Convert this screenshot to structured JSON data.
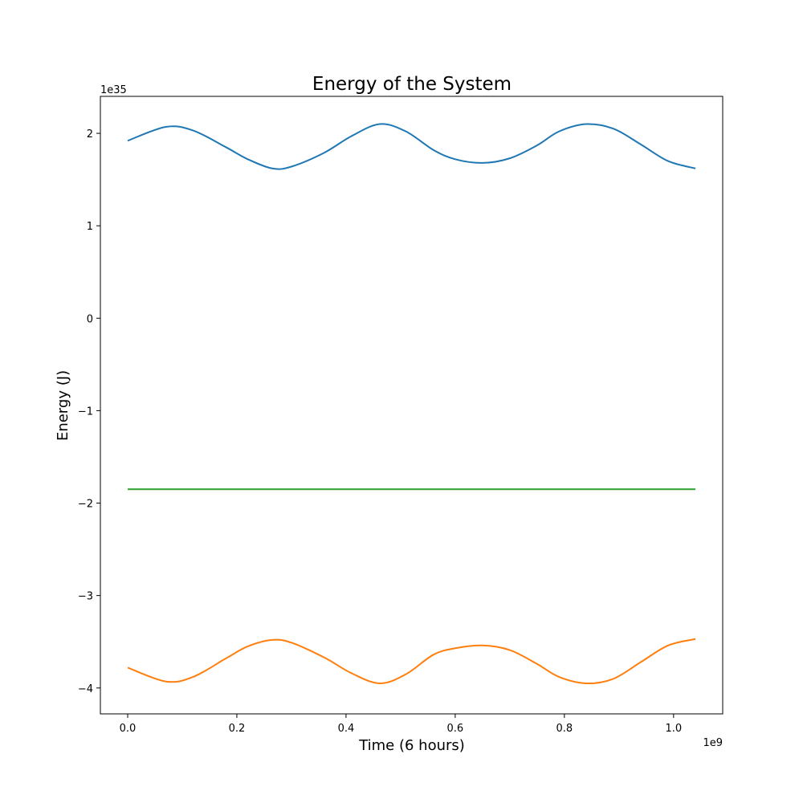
{
  "chart_data": {
    "type": "line",
    "title": "Energy of the System",
    "xlabel": "Time (6 hours)",
    "ylabel": "Energy (J)",
    "x_offset_label": "1e9",
    "y_offset_label": "1e35",
    "x_scale": 1000000000.0,
    "y_scale": 1e+35,
    "xlim": [
      -0.05,
      1.09
    ],
    "ylim": [
      -4.28,
      2.4
    ],
    "xticks": [
      0.0,
      0.2,
      0.4,
      0.6,
      0.8,
      1.0
    ],
    "xtick_labels": [
      "0.0",
      "0.2",
      "0.4",
      "0.6",
      "0.8",
      "1.0"
    ],
    "yticks": [
      -4,
      -3,
      -2,
      -1,
      0,
      1,
      2
    ],
    "ytick_labels": [
      "−4",
      "−3",
      "−2",
      "−1",
      "0",
      "1",
      "2"
    ],
    "grid": false,
    "legend": "none",
    "series": [
      {
        "color": "#1f77b4",
        "x": [
          0.0,
          0.07,
          0.12,
          0.18,
          0.22,
          0.265,
          0.3,
          0.36,
          0.41,
          0.462,
          0.51,
          0.56,
          0.6,
          0.65,
          0.7,
          0.75,
          0.79,
          0.84,
          0.89,
          0.94,
          0.99,
          1.04
        ],
        "y": [
          1.92,
          2.07,
          2.03,
          1.85,
          1.72,
          1.62,
          1.64,
          1.79,
          1.97,
          2.1,
          2.02,
          1.82,
          1.72,
          1.68,
          1.73,
          1.87,
          2.02,
          2.1,
          2.05,
          1.88,
          1.7,
          1.62
        ]
      },
      {
        "color": "#ff7f0e",
        "x": [
          0.0,
          0.07,
          0.12,
          0.18,
          0.22,
          0.265,
          0.3,
          0.36,
          0.41,
          0.462,
          0.51,
          0.56,
          0.6,
          0.65,
          0.7,
          0.75,
          0.79,
          0.84,
          0.89,
          0.94,
          0.99,
          1.04
        ],
        "y": [
          -3.78,
          -3.93,
          -3.88,
          -3.68,
          -3.55,
          -3.48,
          -3.51,
          -3.67,
          -3.84,
          -3.95,
          -3.85,
          -3.64,
          -3.57,
          -3.54,
          -3.59,
          -3.74,
          -3.88,
          -3.95,
          -3.9,
          -3.72,
          -3.54,
          -3.47
        ]
      },
      {
        "color": "#2ca02c",
        "x": [
          0.0,
          1.04
        ],
        "y": [
          -1.85,
          -1.85
        ]
      }
    ]
  }
}
